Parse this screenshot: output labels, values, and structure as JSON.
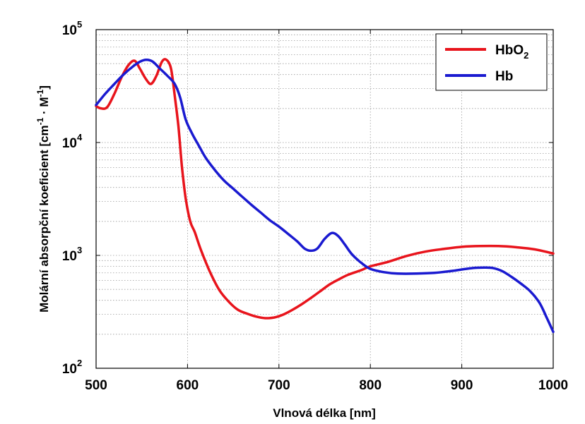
{
  "chart_data": {
    "type": "line",
    "title": "",
    "xlabel": "Vlnová délka [nm]",
    "ylabel": {
      "prefix": "Molární absorpční koeficient [cm",
      "sup1": "-1",
      "dot": " · M",
      "sup2": "-1",
      "suffix": "]"
    },
    "xlim": [
      500,
      1000
    ],
    "ylim": [
      100,
      100000
    ],
    "yscale": "log",
    "grid": true,
    "legend_position": "top-right",
    "x_ticks": [
      "500",
      "600",
      "700",
      "800",
      "900",
      "1000"
    ],
    "y_ticks": [
      {
        "base": "10",
        "exp": "2",
        "value": 100
      },
      {
        "base": "10",
        "exp": "3",
        "value": 1000
      },
      {
        "base": "10",
        "exp": "4",
        "value": 10000
      },
      {
        "base": "10",
        "exp": "5",
        "value": 100000
      }
    ],
    "series": [
      {
        "name": "HbO2",
        "label_main": "HbO",
        "label_sub": "2",
        "color": "#e8141c",
        "points": [
          [
            500,
            21000
          ],
          [
            505,
            20100
          ],
          [
            512,
            20500
          ],
          [
            520,
            27000
          ],
          [
            528,
            38000
          ],
          [
            535,
            48000
          ],
          [
            542,
            53000
          ],
          [
            548,
            45000
          ],
          [
            554,
            37000
          ],
          [
            560,
            33000
          ],
          [
            566,
            39000
          ],
          [
            572,
            52000
          ],
          [
            577,
            54000
          ],
          [
            582,
            45000
          ],
          [
            586,
            26000
          ],
          [
            590,
            14000
          ],
          [
            594,
            6000
          ],
          [
            598,
            3200
          ],
          [
            603,
            2000
          ],
          [
            608,
            1600
          ],
          [
            615,
            1100
          ],
          [
            625,
            700
          ],
          [
            635,
            490
          ],
          [
            645,
            390
          ],
          [
            655,
            330
          ],
          [
            665,
            305
          ],
          [
            675,
            287
          ],
          [
            685,
            278
          ],
          [
            695,
            282
          ],
          [
            705,
            300
          ],
          [
            715,
            330
          ],
          [
            725,
            370
          ],
          [
            735,
            420
          ],
          [
            745,
            480
          ],
          [
            755,
            550
          ],
          [
            765,
            610
          ],
          [
            775,
            670
          ],
          [
            790,
            740
          ],
          [
            800,
            800
          ],
          [
            820,
            880
          ],
          [
            840,
            990
          ],
          [
            860,
            1080
          ],
          [
            880,
            1140
          ],
          [
            900,
            1190
          ],
          [
            920,
            1210
          ],
          [
            940,
            1210
          ],
          [
            960,
            1180
          ],
          [
            980,
            1130
          ],
          [
            1000,
            1040
          ]
        ]
      },
      {
        "name": "Hb",
        "label_main": "Hb",
        "label_sub": "",
        "color": "#1a1ad0",
        "points": [
          [
            500,
            21500
          ],
          [
            510,
            27000
          ],
          [
            520,
            33000
          ],
          [
            530,
            40000
          ],
          [
            540,
            47000
          ],
          [
            548,
            52000
          ],
          [
            555,
            54000
          ],
          [
            562,
            52000
          ],
          [
            570,
            45000
          ],
          [
            578,
            39000
          ],
          [
            586,
            33000
          ],
          [
            592,
            25000
          ],
          [
            598,
            16000
          ],
          [
            605,
            12000
          ],
          [
            612,
            9500
          ],
          [
            620,
            7300
          ],
          [
            630,
            5700
          ],
          [
            640,
            4600
          ],
          [
            650,
            3900
          ],
          [
            660,
            3300
          ],
          [
            670,
            2800
          ],
          [
            680,
            2400
          ],
          [
            690,
            2050
          ],
          [
            700,
            1800
          ],
          [
            710,
            1550
          ],
          [
            720,
            1330
          ],
          [
            728,
            1150
          ],
          [
            735,
            1100
          ],
          [
            742,
            1150
          ],
          [
            750,
            1400
          ],
          [
            758,
            1580
          ],
          [
            765,
            1480
          ],
          [
            772,
            1250
          ],
          [
            780,
            1020
          ],
          [
            790,
            860
          ],
          [
            800,
            760
          ],
          [
            815,
            710
          ],
          [
            830,
            690
          ],
          [
            850,
            690
          ],
          [
            870,
            700
          ],
          [
            890,
            730
          ],
          [
            910,
            770
          ],
          [
            925,
            780
          ],
          [
            935,
            770
          ],
          [
            945,
            720
          ],
          [
            955,
            640
          ],
          [
            965,
            560
          ],
          [
            975,
            480
          ],
          [
            985,
            380
          ],
          [
            993,
            280
          ],
          [
            1000,
            210
          ]
        ]
      }
    ]
  }
}
